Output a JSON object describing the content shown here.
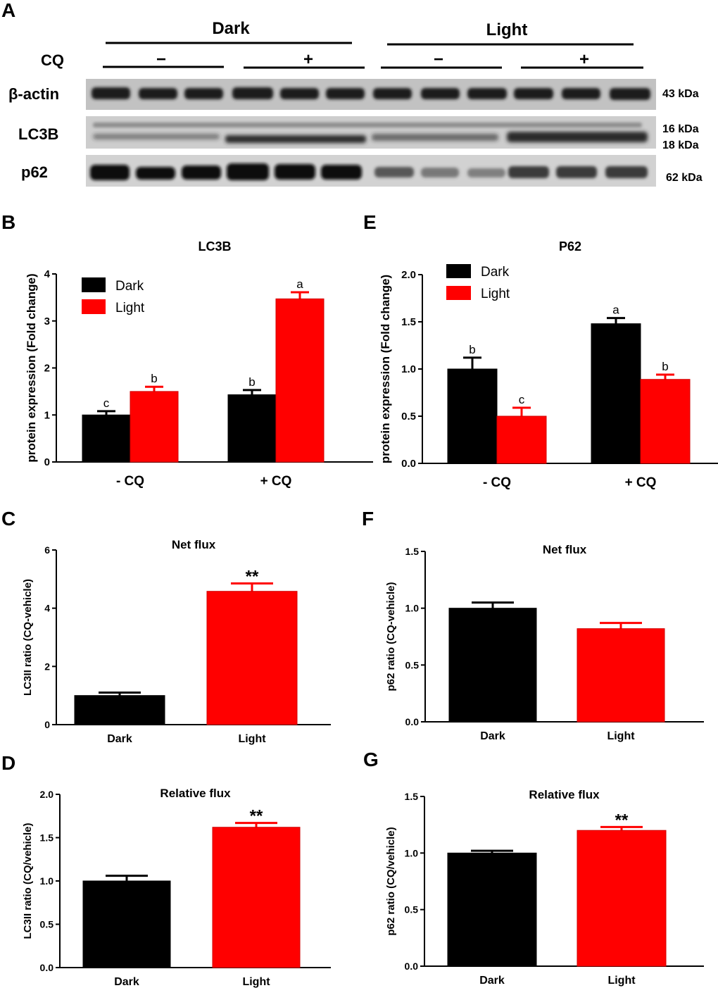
{
  "figure": {
    "blot": {
      "letter": "A",
      "groups": [
        "Dark",
        "Light"
      ],
      "cq_label": "CQ",
      "cq_signs": [
        "−",
        "+",
        "−",
        "+"
      ],
      "rows": [
        {
          "label": "β-actin",
          "kda": [
            "43 kDa"
          ]
        },
        {
          "label": "LC3B",
          "kda": [
            "16 kDa",
            "18 kDa"
          ]
        },
        {
          "label": "p62",
          "kda": [
            "62 kDa"
          ]
        }
      ]
    }
  },
  "colors": {
    "dark": "#000000",
    "light": "#ff0000"
  },
  "chart_data": [
    {
      "id": "B",
      "letter": "B",
      "type": "bar",
      "title": "LC3B",
      "ylabel": "protein expression (Fold change)",
      "categories": [
        "- CQ",
        "+ CQ"
      ],
      "ylim": [
        0,
        4
      ],
      "yticks": [
        "0",
        "1",
        "2",
        "3",
        "4"
      ],
      "legend": [
        "Dark",
        "Light"
      ],
      "series": [
        {
          "name": "Dark",
          "values": [
            1.0,
            1.43
          ],
          "errors": [
            0.08,
            0.1
          ],
          "letters": [
            "c",
            "b"
          ]
        },
        {
          "name": "Light",
          "values": [
            1.5,
            3.47
          ],
          "errors": [
            0.1,
            0.14
          ],
          "letters": [
            "b",
            "a"
          ]
        }
      ]
    },
    {
      "id": "E",
      "letter": "E",
      "type": "bar",
      "title": "P62",
      "ylabel": "protein expression (Fold change)",
      "categories": [
        "- CQ",
        "+ CQ"
      ],
      "ylim": [
        0,
        2
      ],
      "yticks": [
        "0.0",
        "0.5",
        "1.0",
        "1.5",
        "2.0"
      ],
      "legend": [
        "Dark",
        "Light"
      ],
      "series": [
        {
          "name": "Dark",
          "values": [
            1.0,
            1.48
          ],
          "errors": [
            0.12,
            0.06
          ],
          "letters": [
            "b",
            "a"
          ]
        },
        {
          "name": "Light",
          "values": [
            0.5,
            0.89
          ],
          "errors": [
            0.09,
            0.05
          ],
          "letters": [
            "c",
            "b"
          ]
        }
      ]
    },
    {
      "id": "C",
      "letter": "C",
      "type": "bar",
      "title": "Net flux",
      "ylabel": "LC3II ratio (CQ-vehicle)",
      "categories": [
        "Dark",
        "Light"
      ],
      "ylim": [
        0,
        6
      ],
      "yticks": [
        "0",
        "2",
        "4",
        "6"
      ],
      "values": [
        1.0,
        4.58
      ],
      "errors": [
        0.1,
        0.27
      ],
      "annotations": [
        "",
        "**"
      ]
    },
    {
      "id": "F",
      "letter": "F",
      "type": "bar",
      "title": "Net flux",
      "ylabel": "p62 ratio (CQ-vehicle)",
      "categories": [
        "Dark",
        "Light"
      ],
      "ylim": [
        0,
        1.5
      ],
      "yticks": [
        "0.0",
        "0.5",
        "1.0",
        "1.5"
      ],
      "values": [
        1.0,
        0.82
      ],
      "errors": [
        0.05,
        0.05
      ],
      "annotations": [
        "",
        ""
      ]
    },
    {
      "id": "D",
      "letter": "D",
      "type": "bar",
      "title": "Relative flux",
      "ylabel": "LC3II ratio (CQ/vehicle)",
      "categories": [
        "Dark",
        "Light"
      ],
      "ylim": [
        0,
        2.0
      ],
      "yticks": [
        "0.0",
        "0.5",
        "1.0",
        "1.5",
        "2.0"
      ],
      "values": [
        1.0,
        1.62
      ],
      "errors": [
        0.06,
        0.05
      ],
      "annotations": [
        "",
        "**"
      ]
    },
    {
      "id": "G",
      "letter": "G",
      "type": "bar",
      "title": "Relative flux",
      "ylabel": "p62 ratio (CQ/vehicle)",
      "categories": [
        "Dark",
        "Light"
      ],
      "ylim": [
        0,
        1.5
      ],
      "yticks": [
        "0.0",
        "0.5",
        "1.0",
        "1.5"
      ],
      "values": [
        1.0,
        1.2
      ],
      "errors": [
        0.02,
        0.03
      ],
      "annotations": [
        "",
        "**"
      ]
    }
  ]
}
